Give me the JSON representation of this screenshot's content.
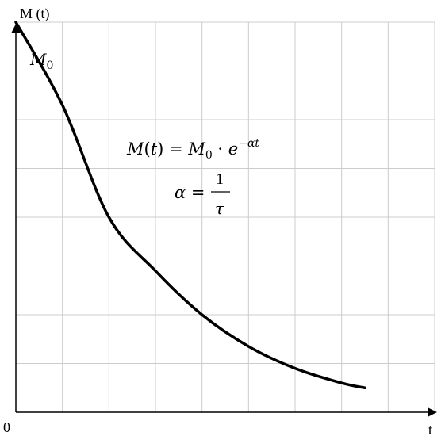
{
  "chart_data": {
    "type": "line",
    "xlabel": "t",
    "ylabel": "M (t)",
    "origin_label": "0",
    "x_grid_steps": 9,
    "y_grid_steps": 8,
    "grid": true,
    "legend": "none",
    "curve_label": "M0",
    "series": [
      {
        "values": [
          {
            "x": 0.0,
            "y": 8.0
          },
          {
            "x": 1.0,
            "y": 6.3
          },
          {
            "x": 2.0,
            "y": 4.0
          },
          {
            "x": 3.0,
            "y": 2.9
          },
          {
            "x": 4.0,
            "y": 2.0
          },
          {
            "x": 5.0,
            "y": 1.35
          },
          {
            "x": 6.0,
            "y": 0.9
          },
          {
            "x": 7.0,
            "y": 0.6
          },
          {
            "x": 7.5,
            "y": 0.5
          }
        ]
      }
    ],
    "formula": {
      "line1": "M(t) = M0 · e^(−αt)",
      "line2": "α = 1/τ"
    }
  },
  "colors": {
    "grid": "#cccccc",
    "axis": "#000000",
    "curve": "#000000"
  }
}
